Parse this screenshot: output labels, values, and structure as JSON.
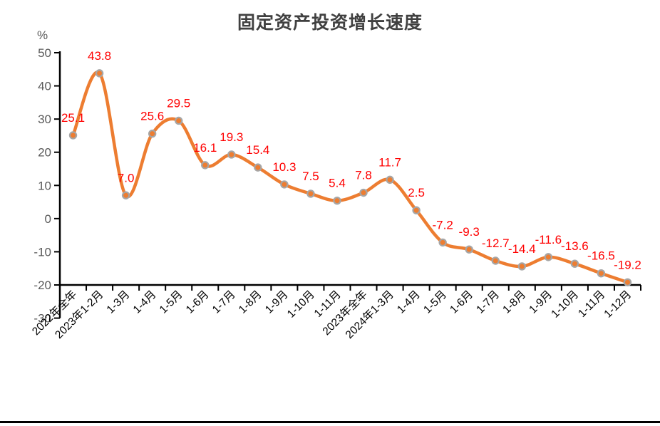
{
  "chart_data": {
    "type": "line",
    "title": "固定资产投资增长速度",
    "ylabel": "%",
    "categories": [
      "2022年全年",
      "2023年1-2月",
      "1-3月",
      "1-4月",
      "1-5月",
      "1-6月",
      "1-7月",
      "1-8月",
      "1-9月",
      "1-10月",
      "1-11月",
      "2023年全年",
      "2024年1-3月",
      "1-4月",
      "1-5月",
      "1-6月",
      "1-7月",
      "1-8月",
      "1-9月",
      "1-10月",
      "1-11月",
      "1-12月"
    ],
    "values": [
      25.1,
      43.8,
      7.0,
      25.6,
      29.5,
      16.1,
      19.3,
      15.4,
      10.3,
      7.5,
      5.4,
      7.8,
      11.7,
      2.5,
      -7.2,
      -9.3,
      -12.7,
      -14.4,
      -11.6,
      -13.6,
      -16.5,
      -19.2
    ],
    "data_labels": [
      "25.1",
      "43.8",
      "7.0",
      "25.6",
      "29.5",
      "16.1",
      "19.3",
      "15.4",
      "10.3",
      "7.5",
      "5.4",
      "7.8",
      "11.7",
      "2.5",
      "-7.2",
      "-9.3",
      "-12.7",
      "-14.4",
      "-11.6",
      "-13.6",
      "-16.5",
      "-19.2"
    ],
    "ylim": [
      -30,
      50
    ],
    "ytick_step": 10,
    "x_axis_cross_at": -20,
    "grid": false,
    "legend": "none",
    "line_smoothing": true,
    "colors": {
      "line": "#ED7D31",
      "marker_fill": "#ED7D31",
      "marker_border": "#A6A6A6",
      "data_label": "#FF0000",
      "y_tick_label": "#595959",
      "x_tick_label": "#000000",
      "axis": "#000000",
      "title": "#404040"
    }
  }
}
